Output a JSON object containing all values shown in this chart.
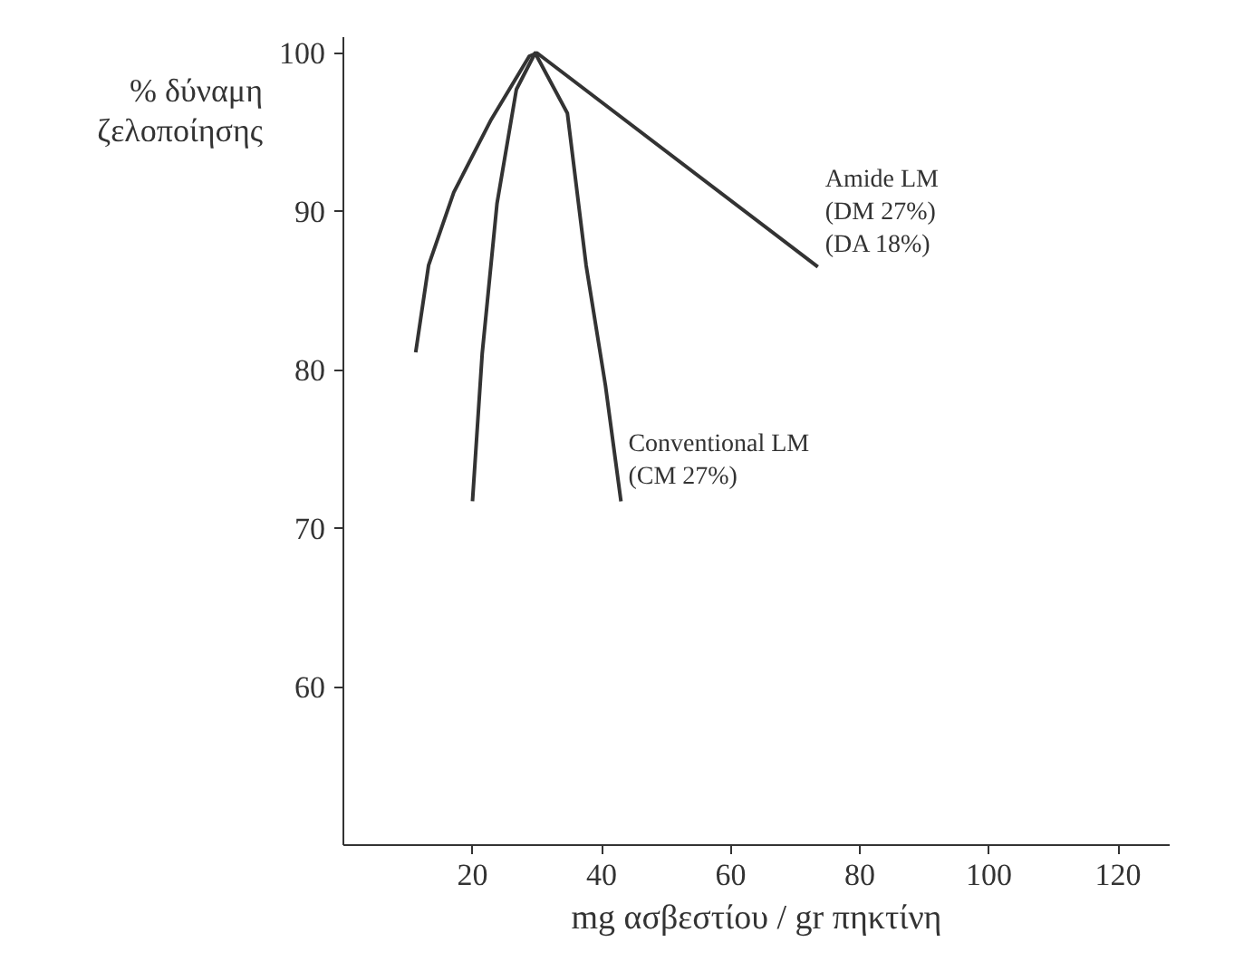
{
  "chart_data": {
    "type": "line",
    "xlabel": "mg ασβεστίου / gr πηκτίνη",
    "ylabel": "% δύναμη\nζελοποίησης",
    "xlim": [
      0,
      128
    ],
    "ylim": [
      50,
      101
    ],
    "xticks": [
      20,
      40,
      60,
      80,
      100,
      120
    ],
    "yticks": [
      60,
      70,
      80,
      90,
      100
    ],
    "grid": false,
    "marker": "none",
    "line_style": "solid",
    "series": [
      {
        "name": "Amide LM\n(DM 27%)\n(DA 18%)",
        "color": "#333333",
        "x": [
          11.2,
          13.2,
          17.1,
          22.9,
          28.8,
          30,
          73.5
        ],
        "values": [
          81.1,
          86.6,
          91.2,
          95.8,
          99.8,
          100,
          86.5
        ]
      },
      {
        "name": "Conventional LM\n(CM 27%)",
        "color": "#333333",
        "x": [
          20,
          21.5,
          23.8,
          26.8,
          29.7,
          34.7,
          37.6,
          40.6,
          43
        ],
        "values": [
          71.7,
          81,
          90.5,
          97.7,
          100,
          96.2,
          86.6,
          79,
          71.7
        ]
      }
    ]
  }
}
